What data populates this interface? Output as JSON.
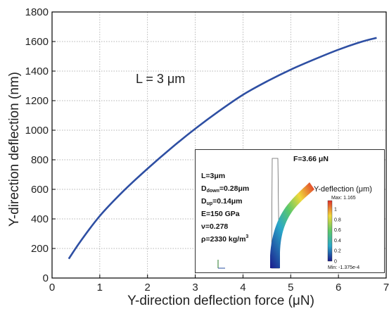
{
  "chart_data": {
    "type": "line",
    "xlabel": "Y-direction  deflection force (μN)",
    "ylabel": "Y-direction  deflection  (nm)",
    "xlim": [
      0,
      7
    ],
    "ylim": [
      0,
      1800
    ],
    "x_ticks": [
      "0",
      "1",
      "2",
      "3",
      "4",
      "5",
      "6",
      "7"
    ],
    "y_ticks": [
      "0",
      "200",
      "400",
      "600",
      "800",
      "1000",
      "1200",
      "1400",
      "1600",
      "1800"
    ],
    "grid": true,
    "annotation": "L = 3 μm",
    "series": [
      {
        "color": "#2e4fa3",
        "x": [
          0.35,
          0.6,
          1.0,
          1.5,
          2.0,
          2.5,
          3.0,
          3.5,
          4.0,
          4.5,
          5.0,
          5.5,
          6.0,
          6.5,
          6.8
        ],
        "y": [
          130,
          250,
          420,
          590,
          740,
          880,
          1010,
          1130,
          1240,
          1330,
          1410,
          1480,
          1545,
          1600,
          1625
        ]
      }
    ]
  },
  "inset": {
    "force_label": "F=3.66 μN",
    "colorbar_title": "Y-deflection (μm)",
    "colorbar_max": "Max: 1.165",
    "colorbar_min": "Min: -1.375e-4",
    "colorbar_ticks": [
      "1",
      "0.8",
      "0.6",
      "0.4",
      "0.2",
      "0"
    ],
    "params": {
      "L": "L=3μm",
      "d_down_prefix": "D",
      "d_down_sub": "down",
      "d_down_val": "=0.28μm",
      "d_up_prefix": "D",
      "d_up_sub": "up",
      "d_up_val": "=0.14μm",
      "E": "E=150 GPa",
      "nu": "ν=0.278",
      "rho_prefix": "ρ=2330 kg/m",
      "rho_sup": "3"
    }
  }
}
